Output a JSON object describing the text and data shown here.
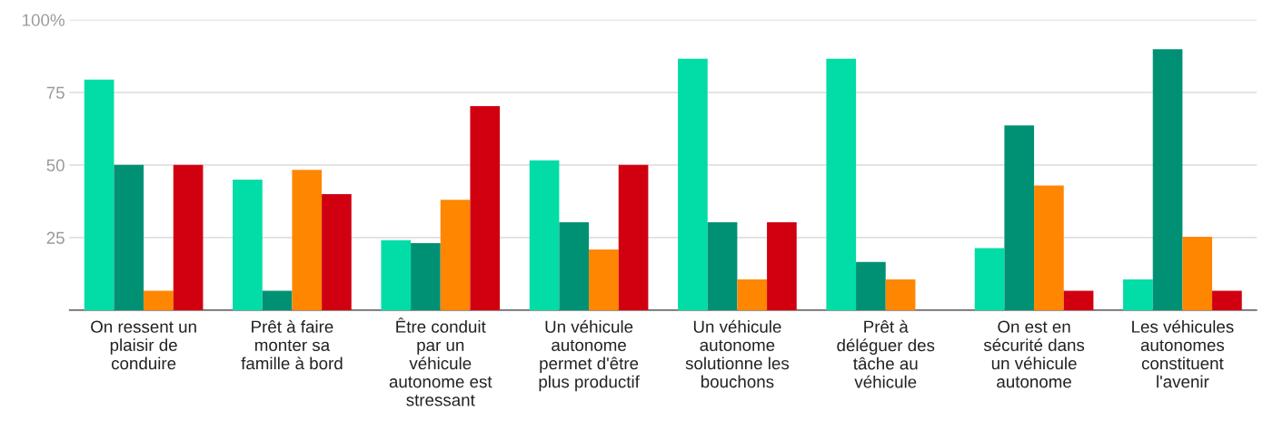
{
  "chart_data": {
    "type": "bar",
    "categories": [
      "On ressent un\nplaisir de\nconduire",
      "Prêt à faire\nmonter sa\nfamille à bord",
      "Être conduit\npar un\nvéhicule\nautonome est\nstressant",
      "Un véhicule\nautonome\npermet d'être\nplus productif",
      "Un véhicule\nautonome\nsolutionne les\nbouchons",
      "Prêt à\ndéléguer des\ntâche au\nvéhicule",
      "On est en\nsécurité dans\nun véhicule\nautonome",
      "Les véhicules\nautonomes\nconstituent\nl'avenir"
    ],
    "series": [
      {
        "color": "#02dca6",
        "values": [
          79.4,
          45,
          24.1,
          51.6,
          86.6,
          86.6,
          21.4,
          10.6
        ]
      },
      {
        "color": "#009175",
        "values": [
          50,
          6.7,
          23.1,
          30.3,
          30.3,
          16.6,
          63.6,
          89.9
        ]
      },
      {
        "color": "#ff8600",
        "values": [
          6.7,
          48.3,
          38,
          20.9,
          10.6,
          10.6,
          42.9,
          25.3
        ]
      },
      {
        "color": "#d10011",
        "values": [
          50,
          40,
          70.3,
          50,
          30.3,
          null,
          6.7,
          6.7
        ]
      }
    ],
    "ylim": [
      0,
      100
    ],
    "yticks": [
      25,
      50,
      75,
      {
        "value": 100,
        "label": "100%"
      }
    ],
    "grid": "y",
    "legend": false
  }
}
